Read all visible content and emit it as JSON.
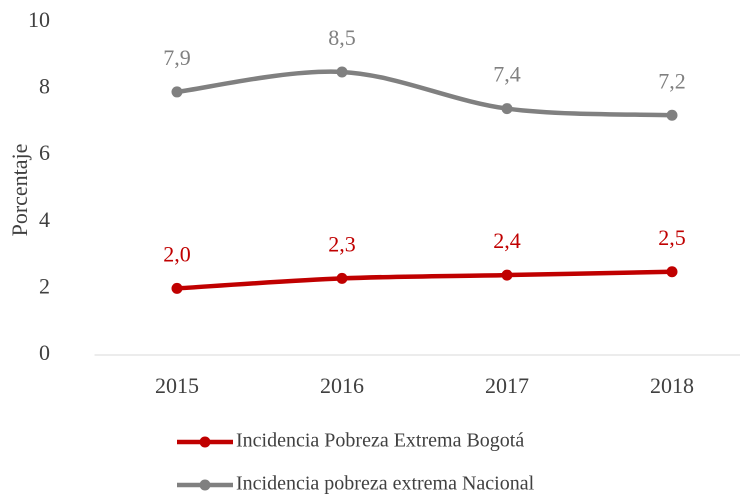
{
  "chart_data": {
    "type": "line",
    "y_label": "Porcentaje",
    "categories": [
      "2015",
      "2016",
      "2017",
      "2018"
    ],
    "series": [
      {
        "name": "Incidencia Pobreza Extrema Bogotá",
        "color": "#c00000",
        "values": [
          2.0,
          2.3,
          2.4,
          2.5
        ],
        "value_labels": [
          "2,0",
          "2,3",
          "2,4",
          "2,5"
        ]
      },
      {
        "name": "Incidencia pobreza extrema Nacional",
        "color": "#808080",
        "values": [
          7.9,
          8.5,
          7.4,
          7.2
        ],
        "value_labels": [
          "7,9",
          "8,5",
          "7,4",
          "7,2"
        ]
      }
    ],
    "ylim": [
      0,
      10
    ],
    "yticks": [
      0,
      2,
      4,
      6,
      8,
      10
    ],
    "grid": false,
    "smooth": true,
    "legend": "bottom"
  }
}
